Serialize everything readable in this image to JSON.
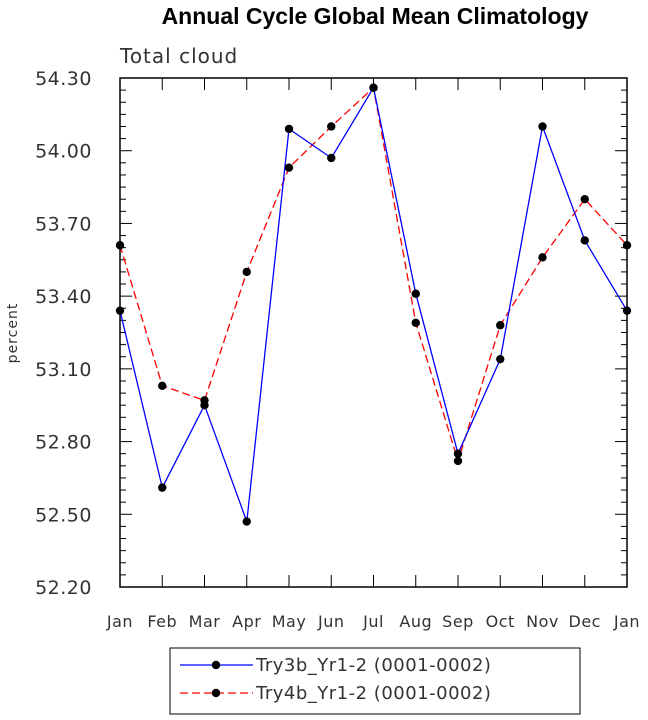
{
  "chart_data": {
    "type": "line",
    "title": "Annual Cycle Global Mean Climatology",
    "subtitle": "Total cloud",
    "xlabel": "",
    "ylabel": "percent",
    "categories": [
      "Jan",
      "Feb",
      "Mar",
      "Apr",
      "May",
      "Jun",
      "Jul",
      "Aug",
      "Sep",
      "Oct",
      "Nov",
      "Dec",
      "Jan"
    ],
    "ylim": [
      52.2,
      54.3
    ],
    "yticks": [
      "52.20",
      "52.50",
      "52.80",
      "53.10",
      "53.40",
      "53.70",
      "54.00",
      "54.30"
    ],
    "series": [
      {
        "name": "Try3b_Yr1-2 (0001-0002)",
        "color": "#0000ff",
        "dash": "solid",
        "values": [
          53.34,
          52.61,
          52.95,
          52.47,
          54.09,
          53.97,
          54.26,
          53.41,
          52.75,
          53.14,
          54.1,
          53.63,
          53.34
        ]
      },
      {
        "name": "Try4b_Yr1-2 (0001-0002)",
        "color": "#ff0000",
        "dash": "dashed",
        "values": [
          53.61,
          53.03,
          52.97,
          53.5,
          53.93,
          54.1,
          54.26,
          53.29,
          52.72,
          53.28,
          53.56,
          53.8,
          53.61
        ]
      }
    ],
    "grid": false,
    "legend": "bottom-center"
  }
}
